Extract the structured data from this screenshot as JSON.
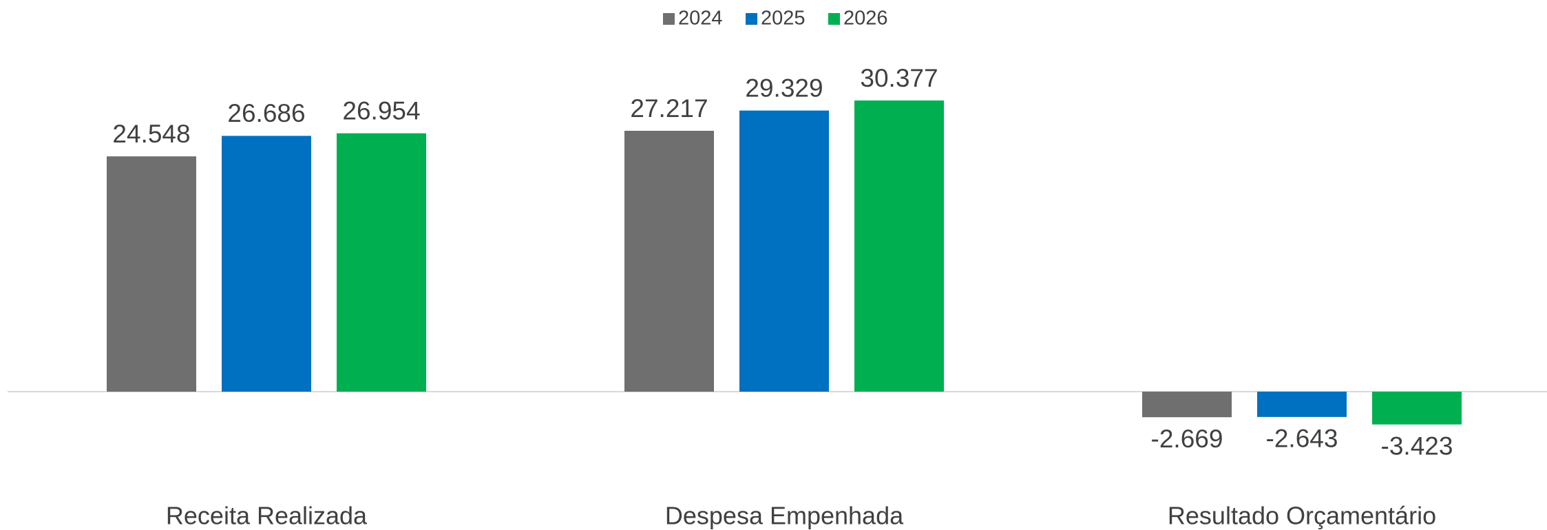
{
  "chart_data": {
    "type": "bar",
    "categories": [
      "Receita Realizada",
      "Despesa Empenhada",
      "Resultado Orçamentário"
    ],
    "series": [
      {
        "name": "2024",
        "color": "#6f6f6f",
        "values": [
          24.548,
          27.217,
          -2.669
        ]
      },
      {
        "name": "2025",
        "color": "#0070c0",
        "values": [
          26.686,
          29.329,
          -2.643
        ]
      },
      {
        "name": "2026",
        "color": "#00b050",
        "values": [
          26.954,
          30.377,
          -3.423
        ]
      }
    ],
    "legend": "top"
  }
}
